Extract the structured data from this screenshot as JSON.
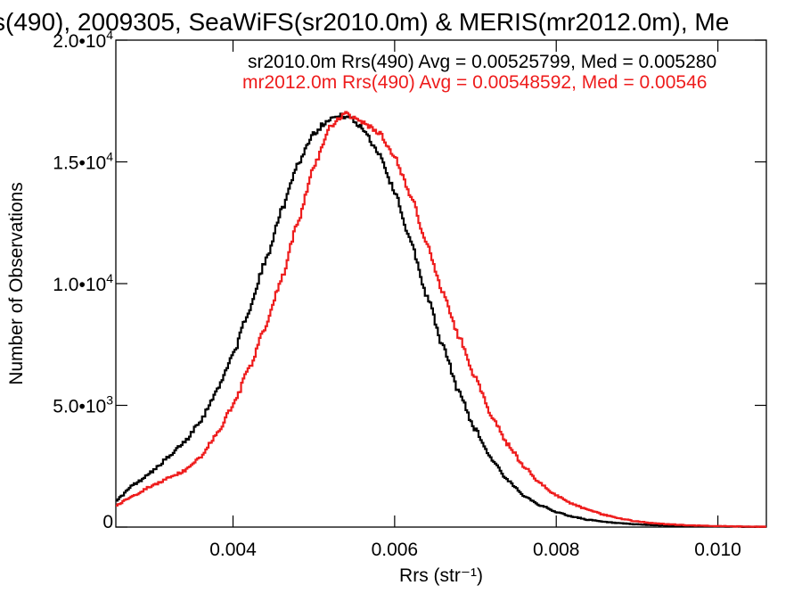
{
  "chart_data": {
    "type": "line",
    "step": true,
    "title": "s(490), 2009305, SeaWiFS(sr2010.0m) & MERIS(mr2012.0m), Me",
    "xlabel": "Rrs (str⁻¹)",
    "ylabel": "Number of Observations",
    "xlim": [
      0.00255,
      0.0106
    ],
    "ylim": [
      0,
      20000
    ],
    "grid": false,
    "xticks": [
      0.004,
      0.006,
      0.008,
      0.01
    ],
    "xtick_labels": [
      "0.004",
      "0.006",
      "0.008",
      "0.010"
    ],
    "yticks": [
      0,
      5000,
      10000,
      15000,
      20000
    ],
    "ytick_labels": [
      {
        "mant": "0",
        "exp": ""
      },
      {
        "mant": "5.0•10",
        "exp": "3"
      },
      {
        "mant": "1.0•10",
        "exp": "4"
      },
      {
        "mant": "1.5•10",
        "exp": "4"
      },
      {
        "mant": "2.0•10",
        "exp": "4"
      }
    ],
    "legend_position": "top-right",
    "series": [
      {
        "name": "sr2010.0m Rrs(490) Avg = 0.00525799, Med = 0.005280",
        "color": "#000000",
        "x": [
          0.00255,
          0.0028,
          0.003,
          0.0032,
          0.0034,
          0.0036,
          0.0038,
          0.004,
          0.0042,
          0.0044,
          0.0046,
          0.0048,
          0.005,
          0.0052,
          0.0054,
          0.0056,
          0.0058,
          0.006,
          0.0062,
          0.0064,
          0.0066,
          0.0068,
          0.007,
          0.0072,
          0.0074,
          0.0076,
          0.0078,
          0.008,
          0.0082,
          0.0084,
          0.0086,
          0.0088,
          0.009,
          0.0092,
          0.0094,
          0.0096,
          0.0098,
          0.01,
          0.0102,
          0.0104,
          0.0106
        ],
        "y": [
          1100,
          1800,
          2300,
          2850,
          3500,
          4400,
          5600,
          7100,
          8900,
          10900,
          13000,
          14900,
          16200,
          16800,
          16900,
          16400,
          15400,
          13800,
          11700,
          9500,
          7400,
          5500,
          4000,
          2800,
          1900,
          1300,
          900,
          620,
          430,
          300,
          210,
          150,
          110,
          80,
          60,
          45,
          35,
          25,
          18,
          12,
          8
        ]
      },
      {
        "name": "mr2012.0m Rrs(490) Avg = 0.00548592, Med = 0.00546",
        "color": "#ee1c1c",
        "x": [
          0.00255,
          0.0028,
          0.003,
          0.0032,
          0.0034,
          0.0036,
          0.0038,
          0.004,
          0.0042,
          0.0044,
          0.0046,
          0.0048,
          0.005,
          0.0052,
          0.0054,
          0.0056,
          0.0058,
          0.006,
          0.0062,
          0.0064,
          0.0066,
          0.0068,
          0.007,
          0.0072,
          0.0074,
          0.0076,
          0.0078,
          0.008,
          0.0082,
          0.0084,
          0.0086,
          0.0088,
          0.009,
          0.0092,
          0.0094,
          0.0096,
          0.0098,
          0.01,
          0.0102,
          0.0104,
          0.0106
        ],
        "y": [
          900,
          1350,
          1700,
          2000,
          2300,
          2900,
          3800,
          5000,
          6500,
          8200,
          10200,
          12500,
          14800,
          16400,
          17000,
          16600,
          16200,
          15200,
          13600,
          11600,
          9600,
          7800,
          6100,
          4600,
          3400,
          2500,
          1800,
          1300,
          950,
          700,
          500,
          340,
          230,
          160,
          110,
          80,
          55,
          40,
          30,
          20,
          12
        ]
      }
    ]
  }
}
